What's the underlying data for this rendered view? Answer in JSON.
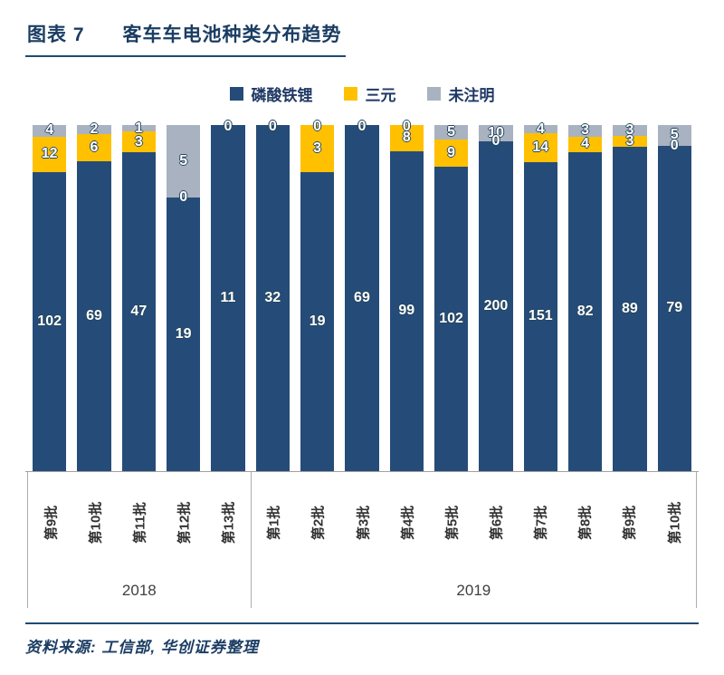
{
  "header": {
    "label": "图表 7",
    "title": "客车车电池种类分布趋势"
  },
  "legend": [
    {
      "name": "磷酸铁锂",
      "color": "#254C78"
    },
    {
      "name": "三元",
      "color": "#FFC000"
    },
    {
      "name": "未注明",
      "color": "#A9B2C0"
    }
  ],
  "source": {
    "text": "资料来源: 工信部, 华创证券整理"
  },
  "chart_data": {
    "type": "bar",
    "stacked": true,
    "percent_stacked": true,
    "title": "客车车电池种类分布趋势",
    "legend_position": "top",
    "grid": false,
    "categories": [
      "第9批",
      "第10批",
      "第11批",
      "第12批",
      "第13批",
      "第1批",
      "第2批",
      "第3批",
      "第4批",
      "第5批",
      "第6批",
      "第7批",
      "第8批",
      "第9批",
      "第10批"
    ],
    "groups": [
      {
        "label": "2018",
        "count": 5
      },
      {
        "label": "2019",
        "count": 10
      }
    ],
    "series": [
      {
        "name": "磷酸铁锂",
        "color": "#254C78",
        "values": [
          102,
          69,
          47,
          19,
          11,
          32,
          19,
          69,
          99,
          102,
          200,
          151,
          82,
          89,
          79
        ]
      },
      {
        "name": "三元",
        "color": "#FFC000",
        "values": [
          12,
          6,
          3,
          0,
          0,
          0,
          3,
          0,
          8,
          9,
          0,
          14,
          4,
          3,
          0
        ]
      },
      {
        "name": "未注明",
        "color": "#A9B2C0",
        "values": [
          4,
          2,
          1,
          5,
          0,
          0,
          0,
          0,
          0,
          5,
          10,
          4,
          3,
          3,
          5
        ]
      }
    ]
  }
}
